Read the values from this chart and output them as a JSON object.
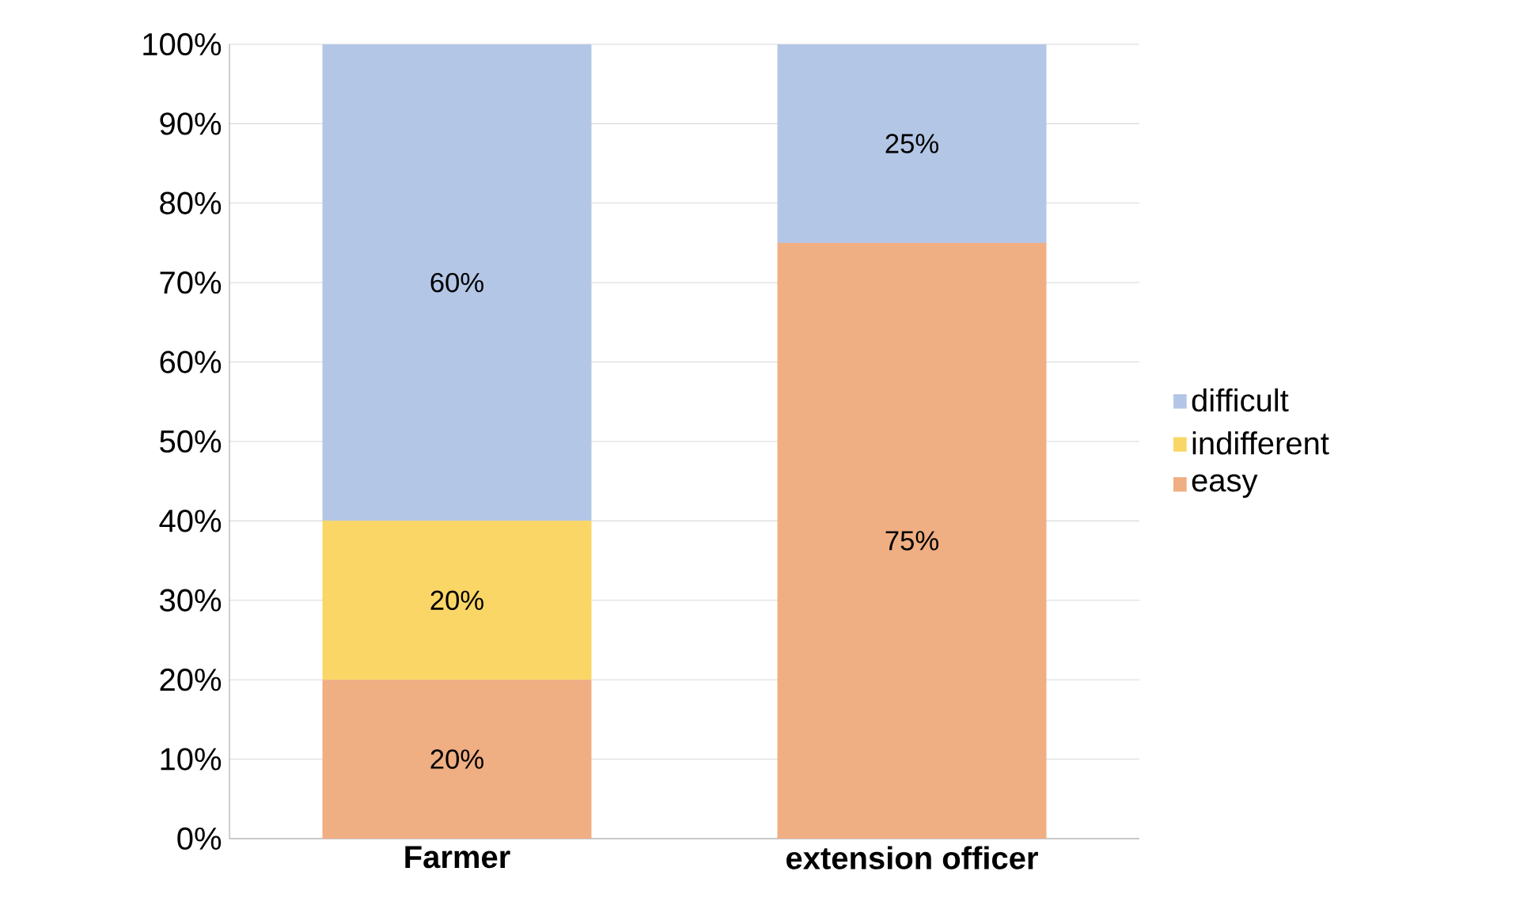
{
  "chart_data": {
    "type": "bar",
    "stacked": true,
    "categories": [
      "Farmer",
      "extension officer"
    ],
    "series": [
      {
        "name": "easy",
        "color": "#f0ae83",
        "values": [
          20,
          75
        ],
        "value_labels": [
          "20%",
          "75%"
        ]
      },
      {
        "name": "indifferent",
        "color": "#fad666",
        "values": [
          20,
          0
        ],
        "value_labels": [
          "20%",
          null
        ]
      },
      {
        "name": "difficult",
        "color": "#b4c6e6",
        "values": [
          60,
          25
        ],
        "value_labels": [
          "60%",
          "25%"
        ]
      }
    ],
    "ylim": [
      0,
      100
    ],
    "yticks": [
      {
        "value": 0,
        "label": "0%"
      },
      {
        "value": 10,
        "label": "10%"
      },
      {
        "value": 20,
        "label": "20%"
      },
      {
        "value": 30,
        "label": "30%"
      },
      {
        "value": 40,
        "label": "40%"
      },
      {
        "value": 50,
        "label": "50%"
      },
      {
        "value": 60,
        "label": "60%"
      },
      {
        "value": 70,
        "label": "70%"
      },
      {
        "value": 80,
        "label": "80%"
      },
      {
        "value": 90,
        "label": "90%"
      },
      {
        "value": 100,
        "label": "100%"
      }
    ],
    "grid": "y",
    "legend": "right"
  }
}
